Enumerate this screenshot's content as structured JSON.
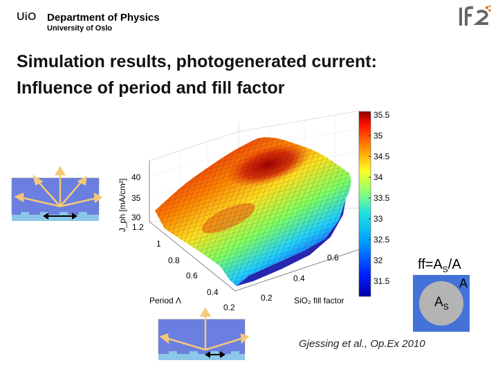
{
  "header": {
    "org_short": "UiO",
    "department": "Department of Physics",
    "university": "University of Oslo",
    "logo_text": "IFE"
  },
  "title": {
    "line1": "Simulation results, photogenerated current:",
    "line2": "Influence of period and fill factor"
  },
  "chart_data": {
    "type": "surface",
    "zlabel": "J_ph [mA/cm²]",
    "xlabel": "Period Λ",
    "ylabel": "SiO₂ fill factor",
    "z_ticks": [
      "30",
      "35",
      "40"
    ],
    "period_ticks": [
      "1.2",
      "1",
      "0.8",
      "0.6",
      "0.4",
      "0.2"
    ],
    "ff_ticks": [
      "0.6",
      "0.4",
      "0.2"
    ],
    "colorbar": {
      "min": 31.5,
      "max": 35.5,
      "ticks": [
        "35.5",
        "35",
        "34.5",
        "34",
        "33.5",
        "33",
        "32.5",
        "32",
        "31.5"
      ],
      "colormap": "jet"
    },
    "surface": {
      "peak_value_approx": 35.5,
      "peak_location": "Period ≈ 0.6, fill factor ≈ 0.5",
      "low_value_approx": 31.5,
      "low_location": "small period, high fill factor"
    }
  },
  "inset": {
    "formula": "ff=A",
    "formula_sub": "S",
    "formula_tail": "/A",
    "box_label": "A",
    "circle_label": "A",
    "circle_label_sub": "S"
  },
  "citation": "Gjessing et al., Op.Ex 2010",
  "colors": {
    "substrate": "#6a7fe0",
    "grating": "#8bc7e8",
    "ray": "#f5c878",
    "unit_cell_bg": "#4472d8",
    "unit_cell_circle": "#b4b4b4"
  }
}
